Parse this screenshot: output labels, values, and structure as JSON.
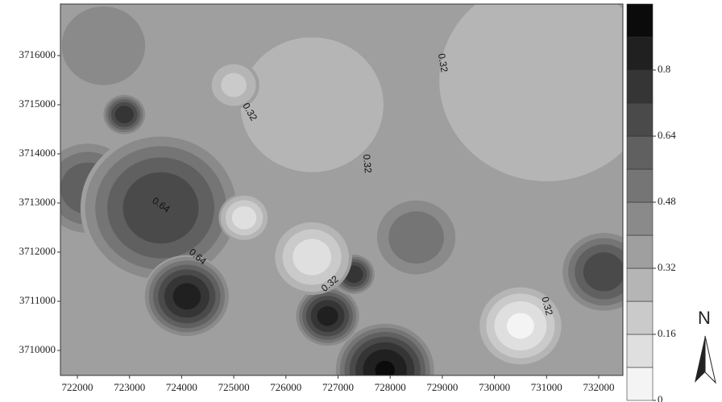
{
  "chart_data": {
    "type": "contour",
    "xlim": [
      721675,
      732464
    ],
    "ylim": [
      3709492,
      3717049
    ],
    "xticks": [
      722000,
      723000,
      724000,
      725000,
      726000,
      727000,
      728000,
      729000,
      730000,
      731000,
      732000
    ],
    "yticks": [
      3710000,
      3711000,
      3712000,
      3713000,
      3714000,
      3715000,
      3716000
    ],
    "background": 0.36,
    "clim": [
      0,
      0.96
    ],
    "level_step": 0.08,
    "cticks": [
      0,
      0.16,
      0.32,
      0.48,
      0.64,
      0.8
    ],
    "peaks": [
      {
        "x": 731000,
        "y": 3715500,
        "value": 0.24,
        "radius": 1800
      },
      {
        "x": 726500,
        "y": 3715000,
        "value": 0.24,
        "radius": 1200
      },
      {
        "x": 722500,
        "y": 3716200,
        "value": 0.48,
        "radius": 700
      },
      {
        "x": 722200,
        "y": 3713300,
        "value": 0.64,
        "radius": 700
      },
      {
        "x": 723600,
        "y": 3712900,
        "value": 0.72,
        "radius": 1100
      },
      {
        "x": 728500,
        "y": 3712300,
        "value": 0.56,
        "radius": 600
      },
      {
        "x": 732100,
        "y": 3711600,
        "value": 0.72,
        "radius": 600
      },
      {
        "x": 724100,
        "y": 3711100,
        "value": 0.85,
        "radius": 600
      },
      {
        "x": 722900,
        "y": 3714800,
        "value": 0.8,
        "radius": 300
      },
      {
        "x": 727900,
        "y": 3709600,
        "value": 0.9,
        "radius": 700
      },
      {
        "x": 726800,
        "y": 3710700,
        "value": 0.85,
        "radius": 450
      },
      {
        "x": 727300,
        "y": 3711550,
        "value": 0.8,
        "radius": 300
      },
      {
        "x": 730500,
        "y": 3710500,
        "value": 0.05,
        "radius": 600
      },
      {
        "x": 726500,
        "y": 3711900,
        "value": 0.1,
        "radius": 550
      },
      {
        "x": 725200,
        "y": 3712700,
        "value": 0.1,
        "radius": 350
      },
      {
        "x": 725000,
        "y": 3715400,
        "value": 0.2,
        "radius": 350
      }
    ],
    "annotations": [
      {
        "text": "0.32",
        "x": 725300,
        "y": 3714850
      },
      {
        "text": "0.32",
        "x": 729000,
        "y": 3715850
      },
      {
        "text": "0.32",
        "x": 727550,
        "y": 3713800
      },
      {
        "text": "0.64",
        "x": 723600,
        "y": 3712950
      },
      {
        "text": "0.64",
        "x": 724300,
        "y": 3711900
      },
      {
        "text": "0.32",
        "x": 726850,
        "y": 3711350
      },
      {
        "text": "0.32",
        "x": 731000,
        "y": 3710900
      }
    ],
    "north_label": "N"
  }
}
